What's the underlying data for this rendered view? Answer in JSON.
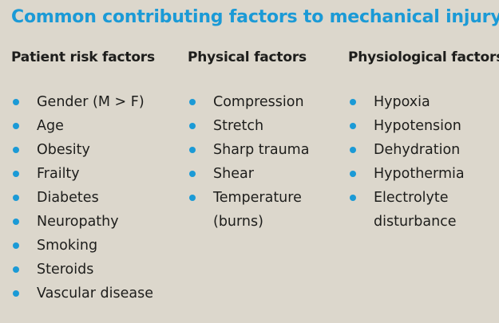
{
  "title": "Common contributing factors to mechanical injury",
  "columns": [
    {
      "heading": "Patient risk factors",
      "items": [
        "Gender (M > F)",
        "Age",
        "Obesity",
        "Frailty",
        "Diabetes",
        "Neuropathy",
        "Smoking",
        "Steroids",
        "Vascular disease"
      ]
    },
    {
      "heading": "Physical factors",
      "items": [
        "Compression",
        "Stretch",
        "Sharp trauma",
        "Shear",
        "Temperature (burns)"
      ]
    },
    {
      "heading": "Physiological factors",
      "items": [
        "Hypoxia",
        "Hypotension",
        "Dehydration",
        "Hypothermia",
        "Electrolyte disturbance"
      ]
    }
  ],
  "colors": {
    "accent": "#1b9ad6",
    "background": "#dcd7cc",
    "text": "#1d1d1b"
  },
  "bullet_icon": "filled-circle-icon"
}
